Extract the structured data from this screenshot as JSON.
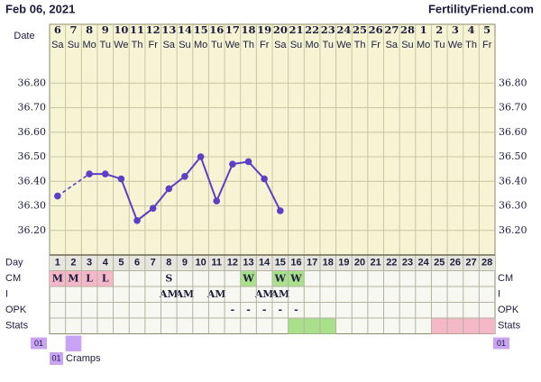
{
  "header": {
    "date": "Feb 06, 2021",
    "site": "FertilityFriend.com"
  },
  "chart_data": {
    "type": "line",
    "x_label": "Date",
    "categories": [
      "6",
      "7",
      "8",
      "9",
      "10",
      "11",
      "12",
      "13",
      "14",
      "15",
      "16",
      "17",
      "18",
      "19",
      "20",
      "21",
      "22",
      "23",
      "24",
      "25",
      "26",
      "27",
      "28",
      "1",
      "2",
      "3",
      "4",
      "5"
    ],
    "weekdays": [
      "Sa",
      "Su",
      "Mo",
      "Tu",
      "We",
      "Th",
      "Fr",
      "Sa",
      "Su",
      "Mo",
      "Tu",
      "We",
      "Th",
      "Fr",
      "Sa",
      "Su",
      "Mo",
      "Tu",
      "We",
      "Th",
      "Fr",
      "Sa",
      "Su",
      "Mo",
      "Tu",
      "We",
      "Th",
      "Fr"
    ],
    "values": [
      36.34,
      null,
      36.43,
      36.43,
      36.41,
      36.24,
      36.29,
      36.37,
      36.42,
      36.5,
      36.32,
      36.47,
      36.48,
      36.41,
      36.28,
      null,
      null,
      null,
      null,
      null,
      null,
      null,
      null,
      null,
      null,
      null,
      null,
      null
    ],
    "color": "#5b3fc4",
    "ylim": [
      36.1,
      36.9
    ],
    "yticks": [
      {
        "value": 36.2,
        "label": "36.20"
      },
      {
        "value": 36.3,
        "label": "36.30"
      },
      {
        "value": 36.4,
        "label": "36.40"
      },
      {
        "value": 36.5,
        "label": "36.50"
      },
      {
        "value": 36.6,
        "label": "36.60"
      },
      {
        "value": 36.7,
        "label": "36.70"
      },
      {
        "value": 36.8,
        "label": "36.80"
      }
    ],
    "grid": true
  },
  "table": {
    "day_label": "Day",
    "days": [
      "1",
      "2",
      "3",
      "4",
      "5",
      "6",
      "7",
      "8",
      "9",
      "10",
      "11",
      "12",
      "13",
      "14",
      "15",
      "16",
      "17",
      "18",
      "19",
      "20",
      "21",
      "22",
      "23",
      "24",
      "25",
      "26",
      "27",
      "28"
    ],
    "rows": [
      {
        "label": "CM",
        "cells": [
          "M",
          "M",
          "L",
          "L",
          null,
          null,
          null,
          "S",
          null,
          null,
          null,
          null,
          "W",
          null,
          "W",
          "W",
          null,
          null,
          null,
          null,
          null,
          null,
          null,
          null,
          null,
          null,
          null,
          null
        ],
        "colors": [
          "#f4b8c8",
          "#f4b8c8",
          "#f4b8c8",
          "#f4b8c8",
          null,
          null,
          null,
          null,
          null,
          null,
          null,
          null,
          "#a8e08c",
          null,
          "#a8e08c",
          "#a8e08c",
          null,
          null,
          null,
          null,
          null,
          null,
          null,
          null,
          null,
          null,
          null,
          null
        ]
      },
      {
        "label": "I",
        "cells": [
          null,
          null,
          null,
          null,
          null,
          null,
          null,
          "AM",
          "AM",
          null,
          "AM",
          null,
          null,
          "AM",
          "AM",
          null,
          null,
          null,
          null,
          null,
          null,
          null,
          null,
          null,
          null,
          null,
          null,
          null
        ]
      },
      {
        "label": "OPK",
        "cells": [
          null,
          null,
          null,
          null,
          null,
          null,
          null,
          null,
          null,
          null,
          null,
          "-",
          "-",
          "-",
          "-",
          "-",
          null,
          null,
          null,
          null,
          null,
          null,
          null,
          null,
          null,
          null,
          null,
          null
        ]
      },
      {
        "label": "Stats",
        "colors": [
          null,
          null,
          null,
          null,
          null,
          null,
          null,
          null,
          null,
          null,
          null,
          null,
          null,
          null,
          null,
          "#a8e08c",
          "#a8e08c",
          "#a8e08c",
          null,
          null,
          null,
          null,
          null,
          null,
          "#f4b8c8",
          "#f4b8c8",
          "#f4b8c8",
          "#f4b8c8"
        ]
      }
    ],
    "symptom": {
      "code": "01",
      "color": "#c9a4f4",
      "days": [
        2
      ]
    }
  },
  "legend": {
    "code": "01",
    "label": "Cramps"
  }
}
